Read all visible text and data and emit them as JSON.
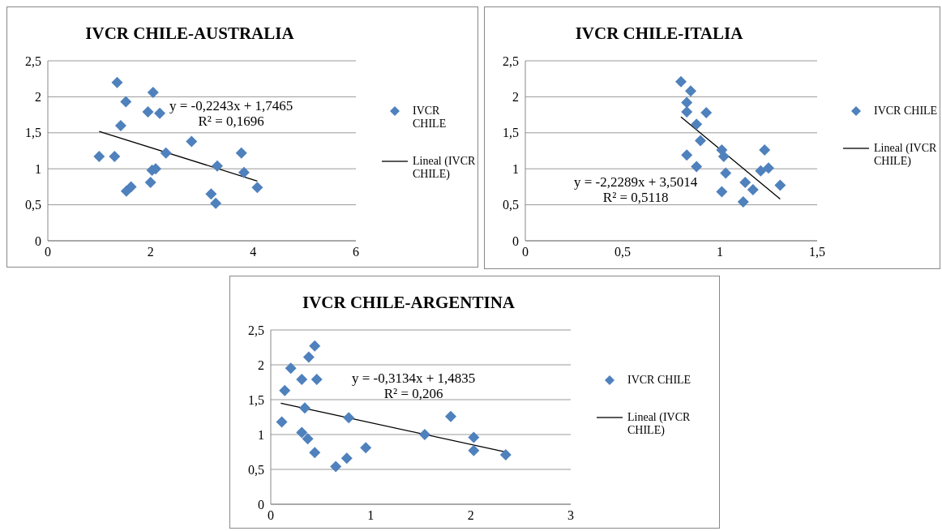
{
  "chart_data": [
    {
      "type": "scatter",
      "title": "IVCR CHILE-AUSTRALIA",
      "xlim": [
        0,
        6
      ],
      "xticks": [
        0,
        2,
        4,
        6
      ],
      "ylim": [
        0,
        2.5
      ],
      "yticks": [
        0,
        {
          "value": 0.5,
          "label": "0,5"
        },
        1,
        {
          "value": 1.5,
          "label": "1,5"
        },
        2,
        {
          "value": 2.5,
          "label": "2,5"
        }
      ],
      "grid": "y",
      "legend": "right",
      "annotations": [
        "y = -0,2243x + 1,7465",
        "R² = 0,1696"
      ],
      "series": [
        {
          "name": "IVCR CHILE",
          "marker": "diamond",
          "color": "#4f81bd",
          "x": [
            1.0,
            1.3,
            1.35,
            1.42,
            1.52,
            1.53,
            1.62,
            1.95,
            2.05,
            2.0,
            2.03,
            2.1,
            2.18,
            2.3,
            2.8,
            3.18,
            3.27,
            3.3,
            3.77,
            3.82,
            4.08
          ],
          "values": [
            1.17,
            1.17,
            2.2,
            1.6,
            1.93,
            0.69,
            0.75,
            1.79,
            2.06,
            0.81,
            0.98,
            1.0,
            1.77,
            1.22,
            1.38,
            0.65,
            0.52,
            1.04,
            1.22,
            0.95,
            0.74
          ]
        },
        {
          "name": "Lineal (IVCR CHILE)",
          "type": "line",
          "marker": "none",
          "color": "#000000",
          "x": [
            1.0,
            4.08
          ],
          "values": [
            1.52,
            0.83
          ]
        }
      ]
    },
    {
      "type": "scatter",
      "title": "IVCR CHILE-ITALIA",
      "xlim": [
        0,
        1.5
      ],
      "xticks": [
        0,
        {
          "value": 0.5,
          "label": "0,5"
        },
        1,
        {
          "value": 1.5,
          "label": "1,5"
        }
      ],
      "ylim": [
        0,
        2.5
      ],
      "yticks": [
        0,
        {
          "value": 0.5,
          "label": "0,5"
        },
        1,
        {
          "value": 1.5,
          "label": "1,5"
        },
        2,
        {
          "value": 2.5,
          "label": "2,5"
        }
      ],
      "grid": "y",
      "legend": "right",
      "annotations": [
        "y = -2,2289x + 3,5014",
        "R² = 0,5118"
      ],
      "series": [
        {
          "name": "IVCR CHILE",
          "marker": "diamond",
          "color": "#4f81bd",
          "x": [
            0.8,
            0.85,
            0.83,
            0.83,
            0.93,
            0.88,
            0.9,
            0.83,
            0.88,
            1.01,
            1.02,
            1.03,
            1.01,
            1.13,
            1.12,
            1.17,
            1.23,
            1.21,
            1.25,
            1.31
          ],
          "values": [
            2.21,
            2.08,
            1.92,
            1.79,
            1.78,
            1.62,
            1.39,
            1.19,
            1.03,
            1.26,
            1.17,
            0.94,
            0.68,
            0.81,
            0.54,
            0.71,
            1.26,
            0.97,
            1.01,
            0.77
          ]
        },
        {
          "name": "Lineal (IVCR CHILE)",
          "type": "line",
          "marker": "none",
          "color": "#000000",
          "x": [
            0.8,
            1.31
          ],
          "values": [
            1.72,
            0.58
          ]
        }
      ]
    },
    {
      "type": "scatter",
      "title": "IVCR CHILE-ARGENTINA",
      "xlim": [
        0,
        3
      ],
      "xticks": [
        0,
        1,
        2,
        3
      ],
      "ylim": [
        0,
        2.5
      ],
      "yticks": [
        0,
        {
          "value": 0.5,
          "label": "0,5"
        },
        1,
        {
          "value": 1.5,
          "label": "1,5"
        },
        2,
        {
          "value": 2.5,
          "label": "2,5"
        }
      ],
      "grid": "y",
      "legend": "right",
      "annotations": [
        "y = -0,3134x + 1,4835",
        "R² = 0,206"
      ],
      "series": [
        {
          "name": "IVCR CHILE",
          "marker": "diamond",
          "color": "#4f81bd",
          "x": [
            0.11,
            0.14,
            0.2,
            0.31,
            0.34,
            0.31,
            0.37,
            0.44,
            0.38,
            0.44,
            0.46,
            0.65,
            0.76,
            0.78,
            0.95,
            1.54,
            1.8,
            2.03,
            2.03,
            2.35
          ],
          "values": [
            1.18,
            1.63,
            1.95,
            1.79,
            1.38,
            1.03,
            0.94,
            0.74,
            2.11,
            2.27,
            1.79,
            0.54,
            0.66,
            1.24,
            0.81,
            1.0,
            1.26,
            0.96,
            0.77,
            0.71
          ]
        },
        {
          "name": "Lineal (IVCR CHILE)",
          "type": "line",
          "marker": "none",
          "color": "#000000",
          "x": [
            0.1,
            2.38
          ],
          "values": [
            1.45,
            0.74
          ]
        }
      ]
    }
  ]
}
